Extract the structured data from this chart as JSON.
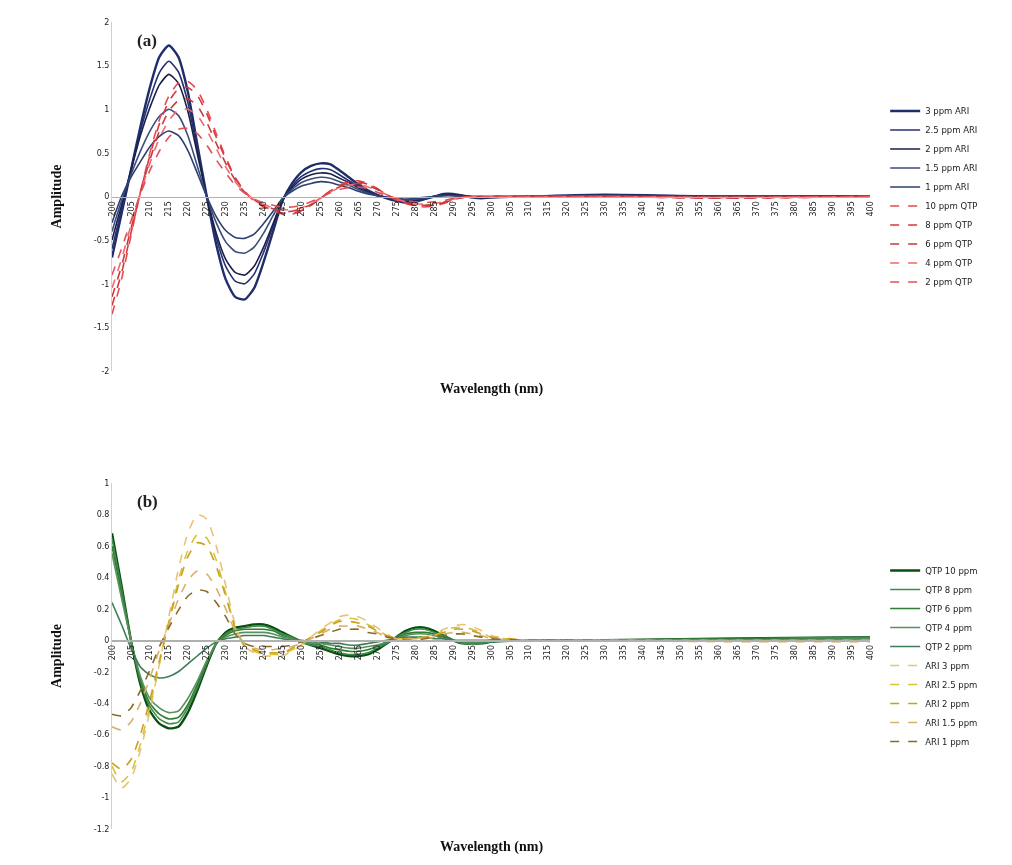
{
  "chart_data": [
    {
      "type": "line",
      "xlabel": "Wavelength (nm)",
      "ylabel": "Amplitude",
      "annotations": [
        "(a)"
      ],
      "legend": "right",
      "grid": false,
      "xlim": [
        200,
        400
      ],
      "xticks": [
        200,
        205,
        210,
        215,
        220,
        225,
        230,
        235,
        240,
        245,
        250,
        255,
        260,
        265,
        270,
        275,
        280,
        285,
        290,
        295,
        300,
        305,
        310,
        315,
        320,
        325,
        330,
        335,
        340,
        345,
        350,
        355,
        360,
        365,
        370,
        375,
        380,
        385,
        390,
        395,
        400
      ],
      "ylim": [
        -2,
        2
      ],
      "yticks": [
        -2,
        -1.5,
        -1,
        -0.5,
        0,
        0.5,
        1,
        1.5,
        2
      ],
      "x": [
        200,
        202.5,
        205,
        207.5,
        210,
        212.5,
        215,
        217.5,
        220,
        222.5,
        225,
        227.5,
        230,
        232.5,
        235,
        237.5,
        240,
        242.5,
        245,
        247.5,
        250,
        252.5,
        255,
        257.5,
        260,
        262.5,
        265,
        267.5,
        270,
        272.5,
        275,
        277.5,
        280,
        282.5,
        285,
        287.5,
        290,
        292.5,
        295,
        297.5,
        300,
        310,
        330,
        360,
        400
      ],
      "series": [
        {
          "name": "3 ppm ARI",
          "color": "#1f2d6b",
          "line_style": "solid",
          "values": [
            -0.7,
            -0.2,
            0.3,
            0.8,
            1.25,
            1.6,
            1.73,
            1.6,
            1.2,
            0.6,
            0,
            -0.55,
            -0.95,
            -1.15,
            -1.18,
            -1.05,
            -0.75,
            -0.4,
            -0.05,
            0.15,
            0.28,
            0.35,
            0.38,
            0.37,
            0.3,
            0.22,
            0.14,
            0.07,
            0.02,
            -0.02,
            -0.05,
            -0.07,
            -0.06,
            -0.03,
            0,
            0.03,
            0.03,
            0.01,
            -0.01,
            -0.02,
            -0.01,
            0,
            0.02,
            0,
            0
          ]
        },
        {
          "name": "2.5 ppm ARI",
          "color": "#25306e",
          "line_style": "solid",
          "values": [
            -0.6,
            -0.15,
            0.3,
            0.75,
            1.12,
            1.42,
            1.55,
            1.43,
            1.08,
            0.54,
            0,
            -0.47,
            -0.8,
            -0.97,
            -1,
            -0.89,
            -0.64,
            -0.34,
            -0.04,
            0.12,
            0.23,
            0.29,
            0.32,
            0.31,
            0.25,
            0.18,
            0.12,
            0.06,
            0.02,
            -0.02,
            -0.04,
            -0.06,
            -0.05,
            -0.03,
            0,
            0.02,
            0.02,
            0.01,
            -0.01,
            -0.01,
            -0.01,
            0,
            0.01,
            0,
            0
          ]
        },
        {
          "name": "2 ppm ARI",
          "color": "#1a1f4a",
          "line_style": "solid",
          "values": [
            -0.5,
            -0.1,
            0.3,
            0.7,
            1.02,
            1.28,
            1.4,
            1.3,
            0.98,
            0.49,
            0,
            -0.42,
            -0.72,
            -0.87,
            -0.9,
            -0.8,
            -0.58,
            -0.31,
            -0.04,
            0.1,
            0.2,
            0.25,
            0.27,
            0.26,
            0.21,
            0.16,
            0.1,
            0.05,
            0.01,
            -0.01,
            -0.04,
            -0.05,
            -0.04,
            -0.02,
            0,
            0.02,
            0.02,
            0.01,
            0,
            -0.01,
            -0.01,
            0,
            0.01,
            0,
            0
          ]
        },
        {
          "name": "1.5 ppm ARI",
          "color": "#3b4d7a",
          "line_style": "solid",
          "values": [
            -0.4,
            -0.05,
            0.25,
            0.52,
            0.75,
            0.92,
            1,
            0.93,
            0.7,
            0.35,
            0,
            -0.3,
            -0.52,
            -0.63,
            -0.65,
            -0.58,
            -0.42,
            -0.22,
            -0.03,
            0.08,
            0.16,
            0.2,
            0.22,
            0.21,
            0.17,
            0.13,
            0.08,
            0.04,
            0.01,
            -0.01,
            -0.03,
            -0.04,
            -0.03,
            -0.02,
            0,
            0.01,
            0.01,
            0,
            0,
            -0.01,
            0,
            0,
            0.01,
            0,
            0
          ]
        },
        {
          "name": "1 ppm ARI",
          "color": "#2e3f70",
          "line_style": "solid",
          "values": [
            -0.3,
            0,
            0.22,
            0.4,
            0.57,
            0.69,
            0.75,
            0.7,
            0.53,
            0.27,
            0,
            -0.23,
            -0.39,
            -0.47,
            -0.48,
            -0.43,
            -0.31,
            -0.17,
            -0.02,
            0.06,
            0.12,
            0.15,
            0.17,
            0.16,
            0.13,
            0.1,
            0.06,
            0.03,
            0.01,
            -0.01,
            -0.02,
            -0.03,
            -0.02,
            -0.01,
            0,
            0.01,
            0.01,
            0,
            0,
            0,
            0,
            0,
            0,
            0,
            0
          ]
        },
        {
          "name": "10 ppm QTP",
          "color": "#e8494f",
          "line_style": "dashed",
          "values": [
            -1.35,
            -0.95,
            -0.45,
            0.05,
            0.5,
            0.88,
            1.15,
            1.3,
            1.32,
            1.22,
            1,
            0.72,
            0.45,
            0.22,
            0.06,
            -0.05,
            -0.12,
            -0.17,
            -0.2,
            -0.2,
            -0.17,
            -0.1,
            -0.02,
            0.06,
            0.13,
            0.17,
            0.18,
            0.15,
            0.09,
            0.02,
            -0.04,
            -0.08,
            -0.11,
            -0.12,
            -0.11,
            -0.08,
            -0.04,
            -0.01,
            0,
            0,
            0,
            0,
            0,
            -0.02,
            0
          ]
        },
        {
          "name": "8 ppm QTP",
          "color": "#d9363e",
          "line_style": "dashed",
          "values": [
            -1.25,
            -0.88,
            -0.42,
            0.05,
            0.47,
            0.83,
            1.09,
            1.23,
            1.25,
            1.16,
            0.95,
            0.68,
            0.43,
            0.21,
            0.06,
            -0.05,
            -0.11,
            -0.16,
            -0.19,
            -0.19,
            -0.16,
            -0.1,
            -0.02,
            0.06,
            0.12,
            0.16,
            0.17,
            0.14,
            0.09,
            0.02,
            -0.04,
            -0.08,
            -0.1,
            -0.11,
            -0.1,
            -0.07,
            -0.04,
            -0.01,
            0,
            0,
            0,
            0,
            0,
            -0.02,
            0
          ]
        },
        {
          "name": "6 ppm QTP",
          "color": "#c43c3c",
          "line_style": "dashed",
          "values": [
            -1.15,
            -0.8,
            -0.37,
            0.05,
            0.42,
            0.75,
            0.98,
            1.1,
            1.12,
            1.04,
            0.85,
            0.61,
            0.38,
            0.19,
            0.05,
            -0.04,
            -0.1,
            -0.14,
            -0.17,
            -0.17,
            -0.14,
            -0.09,
            -0.02,
            0.05,
            0.11,
            0.14,
            0.15,
            0.13,
            0.08,
            0.02,
            -0.03,
            -0.07,
            -0.09,
            -0.1,
            -0.09,
            -0.07,
            -0.03,
            -0.01,
            0,
            0,
            0,
            0,
            0,
            -0.01,
            0
          ]
        },
        {
          "name": "4 ppm QTP",
          "color": "#f06870",
          "line_style": "dashed",
          "values": [
            -1.05,
            -0.72,
            -0.33,
            0.04,
            0.38,
            0.67,
            0.87,
            0.99,
            1,
            0.93,
            0.76,
            0.55,
            0.34,
            0.17,
            0.05,
            -0.04,
            -0.09,
            -0.13,
            -0.15,
            -0.15,
            -0.13,
            -0.08,
            -0.02,
            0.05,
            0.1,
            0.13,
            0.14,
            0.11,
            0.07,
            0.02,
            -0.03,
            -0.06,
            -0.08,
            -0.09,
            -0.08,
            -0.06,
            -0.03,
            -0.01,
            0,
            0,
            0,
            0,
            0,
            -0.01,
            0
          ]
        },
        {
          "name": "2 ppm QTP",
          "color": "#e05058",
          "line_style": "dashed",
          "values": [
            -0.9,
            -0.6,
            -0.28,
            0.03,
            0.3,
            0.52,
            0.68,
            0.77,
            0.78,
            0.72,
            0.59,
            0.42,
            0.27,
            0.13,
            0.04,
            -0.03,
            -0.07,
            -0.1,
            -0.12,
            -0.12,
            -0.1,
            -0.06,
            -0.01,
            0.04,
            0.08,
            0.1,
            0.11,
            0.09,
            0.05,
            0.01,
            -0.02,
            -0.05,
            -0.06,
            -0.07,
            -0.06,
            -0.05,
            -0.02,
            -0.01,
            0,
            0,
            0,
            0,
            0,
            -0.01,
            0
          ]
        }
      ]
    },
    {
      "type": "line",
      "xlabel": "Wavelength (nm)",
      "ylabel": "Amplitude",
      "annotations": [
        "(b)"
      ],
      "legend": "right",
      "grid": false,
      "xlim": [
        200,
        400
      ],
      "xticks": [
        200,
        205,
        210,
        215,
        220,
        225,
        230,
        235,
        240,
        245,
        250,
        255,
        260,
        265,
        270,
        275,
        280,
        285,
        290,
        295,
        300,
        305,
        310,
        315,
        320,
        325,
        330,
        335,
        340,
        345,
        350,
        355,
        360,
        365,
        370,
        375,
        380,
        385,
        390,
        395,
        400
      ],
      "ylim": [
        -1.2,
        1
      ],
      "yticks": [
        -1.2,
        -1,
        -0.8,
        -0.6,
        -0.4,
        -0.2,
        0,
        0.2,
        0.4,
        0.6,
        0.8,
        1
      ],
      "x": [
        200,
        202.5,
        205,
        207.5,
        210,
        212.5,
        215,
        217.5,
        220,
        222.5,
        225,
        227.5,
        230,
        232.5,
        235,
        237.5,
        240,
        242.5,
        245,
        247.5,
        250,
        252.5,
        255,
        257.5,
        260,
        262.5,
        265,
        267.5,
        270,
        272.5,
        275,
        277.5,
        280,
        282.5,
        285,
        287.5,
        290,
        292.5,
        295,
        297.5,
        300,
        310,
        330,
        360,
        400
      ],
      "series": [
        {
          "name": "QTP 10 ppm",
          "color": "#0b4d12",
          "line_style": "solid",
          "values": [
            0.68,
            0.35,
            0,
            -0.28,
            -0.45,
            -0.53,
            -0.56,
            -0.55,
            -0.46,
            -0.32,
            -0.16,
            -0.02,
            0.05,
            0.08,
            0.09,
            0.1,
            0.1,
            0.08,
            0.05,
            0.02,
            -0.01,
            -0.03,
            -0.05,
            -0.07,
            -0.09,
            -0.1,
            -0.1,
            -0.09,
            -0.06,
            -0.02,
            0.02,
            0.06,
            0.08,
            0.08,
            0.06,
            0.03,
            0,
            -0.02,
            -0.02,
            -0.02,
            -0.01,
            0,
            0,
            0.01,
            0.02
          ]
        },
        {
          "name": "QTP 8 ppm",
          "color": "#3c8c4a",
          "line_style": "solid",
          "values": [
            0.65,
            0.33,
            0,
            -0.26,
            -0.42,
            -0.5,
            -0.53,
            -0.52,
            -0.43,
            -0.3,
            -0.15,
            -0.02,
            0.04,
            0.07,
            0.08,
            0.09,
            0.09,
            0.07,
            0.04,
            0.02,
            -0.01,
            -0.03,
            -0.04,
            -0.06,
            -0.08,
            -0.09,
            -0.09,
            -0.08,
            -0.05,
            -0.02,
            0.02,
            0.05,
            0.07,
            0.07,
            0.05,
            0.03,
            0,
            -0.02,
            -0.02,
            -0.02,
            -0.01,
            0,
            0,
            0.01,
            0.02
          ]
        },
        {
          "name": "QTP 6 ppm",
          "color": "#2e7d32",
          "line_style": "solid",
          "values": [
            0.6,
            0.3,
            0,
            -0.25,
            -0.4,
            -0.47,
            -0.5,
            -0.49,
            -0.41,
            -0.28,
            -0.14,
            -0.02,
            0.03,
            0.06,
            0.07,
            0.07,
            0.07,
            0.06,
            0.03,
            0.01,
            -0.01,
            -0.02,
            -0.03,
            -0.05,
            -0.06,
            -0.07,
            -0.07,
            -0.06,
            -0.04,
            -0.01,
            0.01,
            0.04,
            0.05,
            0.05,
            0.04,
            0.02,
            0,
            -0.01,
            -0.01,
            -0.01,
            0,
            0,
            0,
            0.01,
            0.01
          ]
        },
        {
          "name": "QTP 4 ppm",
          "color": "#5a8f5e",
          "line_style": "solid",
          "values": [
            0.55,
            0.27,
            0,
            -0.23,
            -0.37,
            -0.43,
            -0.46,
            -0.45,
            -0.37,
            -0.26,
            -0.13,
            -0.02,
            0.02,
            0.04,
            0.05,
            0.05,
            0.05,
            0.04,
            0.02,
            0.01,
            -0.01,
            -0.02,
            -0.02,
            -0.03,
            -0.04,
            -0.05,
            -0.05,
            -0.04,
            -0.03,
            -0.01,
            0.01,
            0.03,
            0.04,
            0.04,
            0.03,
            0.01,
            0,
            -0.01,
            -0.01,
            -0.01,
            0,
            0,
            0,
            0,
            0.01
          ]
        },
        {
          "name": "QTP 2 ppm",
          "color": "#3f7d5a",
          "line_style": "solid",
          "values": [
            0.24,
            0.1,
            -0.05,
            -0.17,
            -0.22,
            -0.24,
            -0.23,
            -0.2,
            -0.15,
            -0.1,
            -0.05,
            -0.01,
            0.01,
            0.02,
            0.03,
            0.03,
            0.03,
            0.02,
            0.01,
            0,
            0,
            -0.01,
            -0.01,
            -0.02,
            -0.02,
            -0.03,
            -0.03,
            -0.02,
            -0.01,
            0,
            0.01,
            0.02,
            0.02,
            0.02,
            0.01,
            0.01,
            0,
            0,
            0,
            0,
            0,
            0,
            0,
            0,
            0
          ]
        },
        {
          "name": "ARI 3 ppm",
          "color": "#e8c37a",
          "line_style": "dashed",
          "values": [
            -0.85,
            -0.94,
            -0.88,
            -0.7,
            -0.45,
            -0.15,
            0.15,
            0.45,
            0.68,
            0.8,
            0.77,
            0.6,
            0.35,
            0.1,
            -0.04,
            -0.08,
            -0.1,
            -0.1,
            -0.1,
            -0.07,
            -0.03,
            0.02,
            0.07,
            0.11,
            0.15,
            0.16,
            0.15,
            0.12,
            0.08,
            0.04,
            0.01,
            0.01,
            0.01,
            0.02,
            0.04,
            0.07,
            0.09,
            0.1,
            0.09,
            0.06,
            0.03,
            0,
            0,
            -0.01,
            -0.01
          ]
        },
        {
          "name": "ARI 2.5 ppm",
          "color": "#d9c23a",
          "line_style": "dashed",
          "values": [
            -0.8,
            -0.9,
            -0.84,
            -0.66,
            -0.42,
            -0.15,
            0.12,
            0.38,
            0.57,
            0.67,
            0.65,
            0.51,
            0.3,
            0.08,
            -0.04,
            -0.07,
            -0.09,
            -0.09,
            -0.09,
            -0.06,
            -0.03,
            0.02,
            0.06,
            0.1,
            0.13,
            0.14,
            0.13,
            0.1,
            0.07,
            0.03,
            0.01,
            0.01,
            0.01,
            0.02,
            0.03,
            0.06,
            0.08,
            0.08,
            0.07,
            0.05,
            0.02,
            0,
            0,
            0,
            0
          ]
        },
        {
          "name": "ARI 2 ppm",
          "color": "#c9a21a",
          "line_style": "dashed",
          "values": [
            -0.78,
            -0.82,
            -0.76,
            -0.6,
            -0.38,
            -0.13,
            0.11,
            0.35,
            0.53,
            0.62,
            0.6,
            0.47,
            0.28,
            0.08,
            -0.03,
            -0.06,
            -0.08,
            -0.08,
            -0.08,
            -0.05,
            -0.02,
            0.02,
            0.05,
            0.09,
            0.12,
            0.12,
            0.11,
            0.09,
            0.06,
            0.03,
            0.01,
            0.01,
            0.01,
            0.02,
            0.03,
            0.05,
            0.07,
            0.07,
            0.06,
            0.04,
            0.02,
            0,
            0,
            0,
            0
          ]
        },
        {
          "name": "ARI 1.5 ppm",
          "color": "#d9b06a",
          "line_style": "dashed",
          "values": [
            -0.55,
            -0.57,
            -0.52,
            -0.4,
            -0.24,
            -0.06,
            0.1,
            0.26,
            0.38,
            0.44,
            0.42,
            0.33,
            0.2,
            0.06,
            -0.02,
            -0.05,
            -0.06,
            -0.06,
            -0.05,
            -0.04,
            -0.02,
            0.01,
            0.04,
            0.07,
            0.09,
            0.09,
            0.09,
            0.07,
            0.05,
            0.02,
            0.01,
            0.01,
            0.01,
            0.01,
            0.02,
            0.04,
            0.05,
            0.05,
            0.04,
            0.03,
            0.01,
            0,
            0,
            0,
            0
          ]
        },
        {
          "name": "ARI 1 ppm",
          "color": "#8a6a2a",
          "line_style": "dashed",
          "values": [
            -0.47,
            -0.48,
            -0.43,
            -0.32,
            -0.19,
            -0.04,
            0.08,
            0.19,
            0.28,
            0.32,
            0.31,
            0.24,
            0.15,
            0.04,
            -0.02,
            -0.04,
            -0.04,
            -0.04,
            -0.04,
            -0.03,
            -0.01,
            0.01,
            0.03,
            0.05,
            0.07,
            0.07,
            0.07,
            0.05,
            0.04,
            0.02,
            0.01,
            0,
            0,
            0.01,
            0.02,
            0.03,
            0.04,
            0.04,
            0.03,
            0.02,
            0.01,
            0,
            0,
            0,
            0
          ]
        }
      ]
    }
  ]
}
